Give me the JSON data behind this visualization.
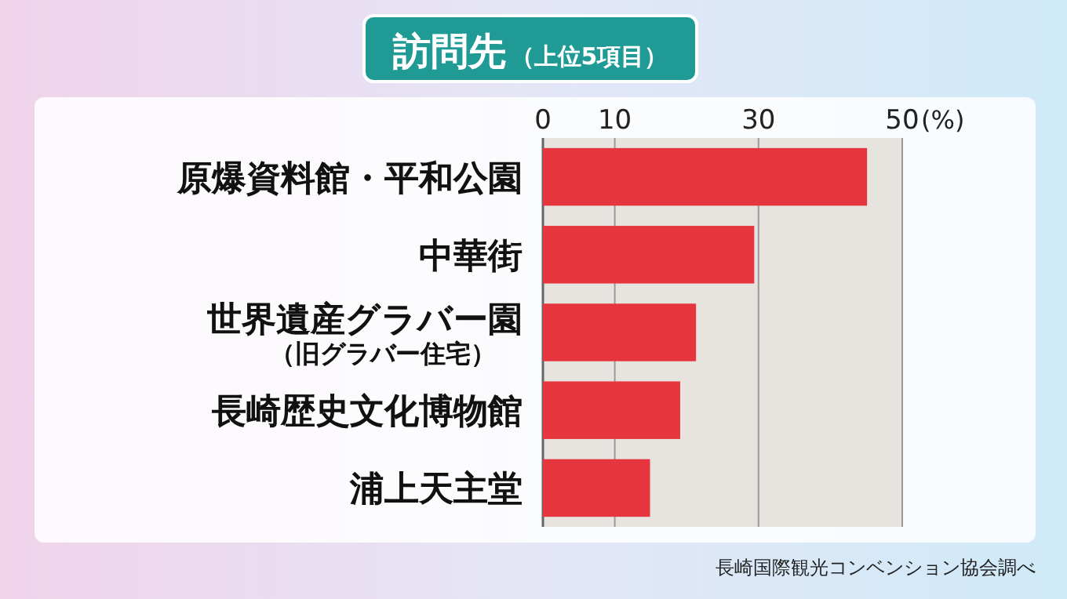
{
  "chart_data": {
    "type": "bar",
    "orientation": "horizontal",
    "title": "訪問先",
    "subtitle": "（上位5項目）",
    "xlabel": "(%)",
    "categories": [
      "原爆資料館・平和公園",
      "中華街",
      "世界遺産グラバー園（旧グラバー住宅）",
      "長崎歴史文化博物館",
      "浦上天主堂"
    ],
    "values": [
      45.1,
      29.4,
      21.3,
      19.1,
      14.9
    ],
    "color": "#e3121c",
    "xlim": [
      0,
      50
    ],
    "xticks": [
      0,
      10,
      30,
      50
    ],
    "grid": "x",
    "annotations": [
      "長崎国際観光コンベンション協会調べ"
    ]
  }
}
